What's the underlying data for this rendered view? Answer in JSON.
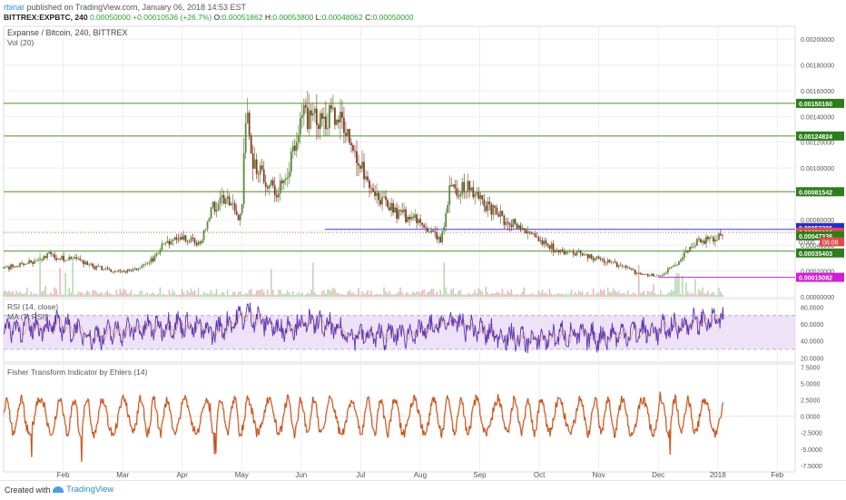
{
  "header": {
    "user": "rbinar",
    "published_text": "published on TradingView.com, January 06, 2018 14:53 EST",
    "symbol": "BITTREX:EXPBTC, 240",
    "last": "0.00050000",
    "change": "+0.00010536 (+26.7%)",
    "open_label": "O:",
    "open": "0.00051862",
    "high_label": "H:",
    "high": "0.00053800",
    "low_label": "L:",
    "low": "0.00048062",
    "close_label": "C:",
    "close": "0.00050000"
  },
  "footer": {
    "created_with": "Created with",
    "brand": "TradingView"
  },
  "colors": {
    "up": "#5a8a3a",
    "down": "#8a3a2a",
    "hline": "#4f8f2c",
    "rsi": "#5e35b1",
    "rsi_band": "#ede2f7",
    "fisher": "#c0501d",
    "blue_line": "#3b3bd6",
    "magenta_line": "#d21ed2"
  },
  "chart_data": [
    {
      "type": "candlestick",
      "title": "Expanse / Bitcoin, 240, BITTREX",
      "volume_label": "Vol (20)",
      "ylim": [
        0,
        0.0021
      ],
      "y_ticks": [
        0,
        0.0002,
        0.0004,
        0.0006,
        0.0008,
        0.001,
        0.0012,
        0.0014,
        0.0016,
        0.0018,
        0.002
      ],
      "y_tick_labels": [
        "0.00000000",
        "0.00020000",
        "0.00040000",
        "0.00060000",
        "0.00080000",
        "0.00100000",
        "0.00120000",
        "0.00140000",
        "0.00160000",
        "0.00180000",
        "0.00200000"
      ],
      "x_labels": [
        "Feb",
        "Mar",
        "Apr",
        "May",
        "Jun",
        "Jul",
        "Aug",
        "Sep",
        "Oct",
        "Nov",
        "Dec",
        "2018",
        "Feb"
      ],
      "x_label_positions": [
        1.0,
        2.0,
        3.0,
        4.0,
        5.0,
        6.0,
        7.0,
        8.0,
        9.0,
        10.0,
        11.0,
        12.0,
        13.0
      ],
      "x_range": [
        0.0,
        13.3
      ],
      "price_path": {
        "x": [
          0.0,
          0.3,
          0.6,
          0.8,
          1.0,
          1.3,
          1.6,
          2.0,
          2.4,
          2.7,
          3.0,
          3.2,
          3.3,
          3.5,
          3.7,
          4.0,
          4.05,
          4.2,
          4.4,
          4.6,
          4.9,
          5.0,
          5.1,
          5.3,
          5.5,
          5.7,
          6.0,
          6.3,
          6.6,
          6.9,
          7.2,
          7.35,
          7.5,
          7.8,
          8.1,
          8.4,
          8.7,
          9.0,
          9.3,
          9.6,
          9.9,
          10.2,
          10.5,
          10.8,
          11.0,
          11.2,
          11.4,
          11.6,
          11.8,
          11.9,
          12.0,
          12.1
        ],
        "price": [
          0.00022,
          0.00025,
          0.00028,
          0.00033,
          0.0003,
          0.00028,
          0.00022,
          0.00019,
          0.00024,
          0.0004,
          0.00047,
          0.00042,
          0.0004,
          0.00068,
          0.00078,
          0.0006,
          0.00145,
          0.00105,
          0.00092,
          0.00078,
          0.00115,
          0.00145,
          0.00135,
          0.00142,
          0.0014,
          0.00135,
          0.001,
          0.00078,
          0.00065,
          0.0006,
          0.00048,
          0.00044,
          0.00082,
          0.00084,
          0.00072,
          0.0006,
          0.00055,
          0.00042,
          0.00036,
          0.00034,
          0.0003,
          0.00027,
          0.00021,
          0.00017,
          0.00016,
          0.00022,
          0.0003,
          0.00042,
          0.00045,
          0.00046,
          0.00047,
          0.0005
        ]
      },
      "horizontal_levels": [
        {
          "value": 0.0015016,
          "label": "0.00150160"
        },
        {
          "value": 0.00124824,
          "label": "0.00124824"
        },
        {
          "value": 0.00081542,
          "label": "0.00081542"
        },
        {
          "value": 0.00035403,
          "label": "0.00035403"
        }
      ],
      "blue_level": {
        "value": 0.00052296,
        "label": "0.00052296",
        "from_x": 5.4
      },
      "magenta_level": {
        "value": 0.00015082,
        "label": "0.00015082",
        "from_x": 11.0
      },
      "last_price": {
        "value": 0.0005,
        "label": "0.00050000"
      },
      "extra_labels": [
        {
          "value": 0.00047336,
          "label": "0.00047336"
        },
        {
          "value": 0.00042,
          "label": "0.000",
          "countdown": "06:08"
        }
      ]
    },
    {
      "type": "line",
      "title": "RSI (14, close)",
      "ma_label": "MA (7, RSI)",
      "ylim": [
        15,
        90
      ],
      "band": [
        30,
        70
      ],
      "y_tick_labels": [
        "20.0000",
        "40.0000",
        "60.0000",
        "80.0000"
      ],
      "y_ticks": [
        20,
        40,
        60,
        80
      ],
      "series": [
        {
          "anchors_x": [
            0.0,
            1.0,
            1.5,
            2.0,
            3.0,
            3.5,
            4.1,
            4.6,
            5.2,
            5.8,
            6.2,
            7.0,
            7.5,
            8.2,
            8.9,
            9.4,
            10.0,
            10.5,
            11.0,
            11.6,
            12.1
          ],
          "anchors_y": [
            55,
            58,
            45,
            52,
            60,
            50,
            72,
            55,
            62,
            48,
            45,
            50,
            63,
            48,
            40,
            48,
            44,
            50,
            52,
            62,
            65
          ]
        }
      ]
    },
    {
      "type": "line",
      "title": "Fisher Transform Indicator by Ehlers (14)",
      "ylim": [
        -8.5,
        8
      ],
      "y_ticks": [
        -7.5,
        -5,
        -2.5,
        0,
        2.5,
        5,
        7.5
      ],
      "y_tick_labels": [
        "-7.5000",
        "-5.0000",
        "-2.5000",
        "0.0000",
        "2.5000",
        "5.0000",
        "7.5000"
      ],
      "series": [
        {
          "amplitude": 2.6
        }
      ]
    }
  ]
}
